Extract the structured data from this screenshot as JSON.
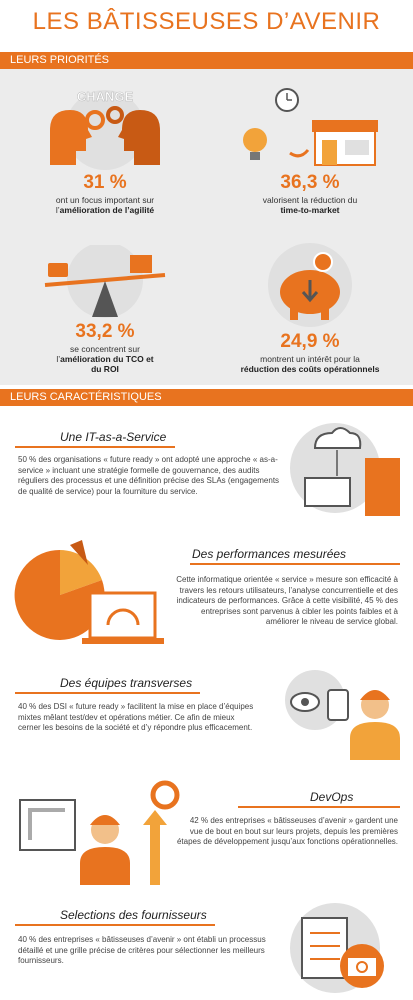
{
  "header": {
    "title": "LES BÂTISSEUSES D’AVENIR"
  },
  "priorities": {
    "heading": "LEURS PRIORITÉS",
    "icon_text": "CHANGE",
    "items": [
      {
        "figure": "31 %",
        "caption": "ont un focus important sur l’",
        "caption_bold": "amélioration de l’agilité"
      },
      {
        "figure": "36,3 %",
        "caption": "valorisent la réduction du ",
        "caption_bold": "time-to-market"
      },
      {
        "figure": "33,2 %",
        "caption": "se concentrent sur l’",
        "caption_bold": "amélioration du TCO et du ROI"
      },
      {
        "figure": "24,9 %",
        "caption": "montrent un intérêt pour la ",
        "caption_bold": "réduction des coûts opérationnels"
      }
    ]
  },
  "characteristics": {
    "heading": "LEURS CARACTÉRISTIQUES",
    "sections": [
      {
        "title": "Une IT-as-a-Service",
        "text": "50 % des organisations « future ready » ont adopté une approche « as-a-service » incluant une stratégie formelle de gouvernance, des audits réguliers des processus et une définition précise des SLAs (engagements de qualité de service) pour la fourniture du service."
      },
      {
        "title": "Des performances mesurées",
        "text": "Cette informatique orientée « service » mesure son efficacité à travers les retours utilisateurs, l’analyse concurrentielle et des indicateurs de performances. Grâce à cette visibilité, 45 % des entreprises sont parvenus à cibler les points faibles et à améliorer le niveau de service global."
      },
      {
        "title": "Des équipes transverses",
        "text": "40 % des DSI « future ready » facilitent la mise en place d’équipes mixtes mêlant test/dev et opérations métier. Ce afin de mieux cerner les besoins de la société et d’y répondre plus efficacement."
      },
      {
        "title": "DevOps",
        "text": "42 % des entreprises « bâtisseuses d’avenir » gardent une vue de bout en bout sur leurs projets, depuis les premières étapes de développement jusqu’aux fonctions opérationnelles."
      },
      {
        "title": "Selections des fournisseurs",
        "text": "40 % des entreprises « bâtisseuses d’avenir » ont établi un processus détaillé et une grille précise de critères pour sélectionner les meilleurs fournisseurs."
      }
    ]
  }
}
